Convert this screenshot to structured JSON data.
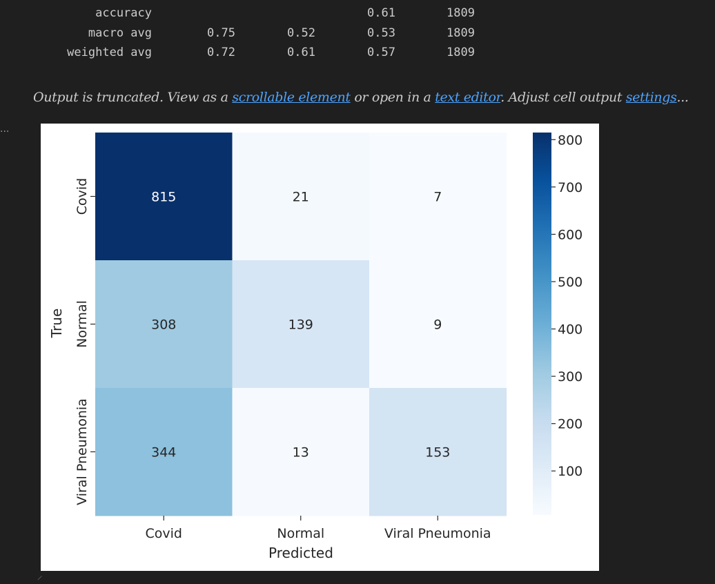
{
  "report": {
    "rows": [
      {
        "label": "accuracy",
        "precision": "",
        "recall": "",
        "f1": "0.61",
        "support": "1809"
      },
      {
        "label": "macro avg",
        "precision": "0.75",
        "recall": "0.52",
        "f1": "0.53",
        "support": "1809"
      },
      {
        "label": "weighted avg",
        "precision": "0.72",
        "recall": "0.61",
        "f1": "0.57",
        "support": "1809"
      }
    ]
  },
  "output_notice": {
    "prefix": "Output is truncated. View as a ",
    "link_scrollable": "scrollable element",
    "middle": " or open in a ",
    "link_editor": "text editor",
    "middle2": ". Adjust cell output ",
    "link_settings": "settings",
    "suffix": "..."
  },
  "cell_toolbar": {
    "ellipsis": "..."
  },
  "chart_data": {
    "type": "heatmap",
    "colormap": "Blues",
    "x_categories": [
      "Covid",
      "Normal",
      "Viral Pneumonia"
    ],
    "y_categories": [
      "Covid",
      "Normal",
      "Viral Pneumonia"
    ],
    "values": [
      [
        815,
        21,
        7
      ],
      [
        308,
        139,
        9
      ],
      [
        344,
        13,
        153
      ]
    ],
    "xlabel": "Predicted",
    "ylabel": "True",
    "colorbar": {
      "min": 7,
      "max": 815,
      "ticks": [
        100,
        200,
        300,
        400,
        500,
        600,
        700,
        800
      ]
    }
  }
}
